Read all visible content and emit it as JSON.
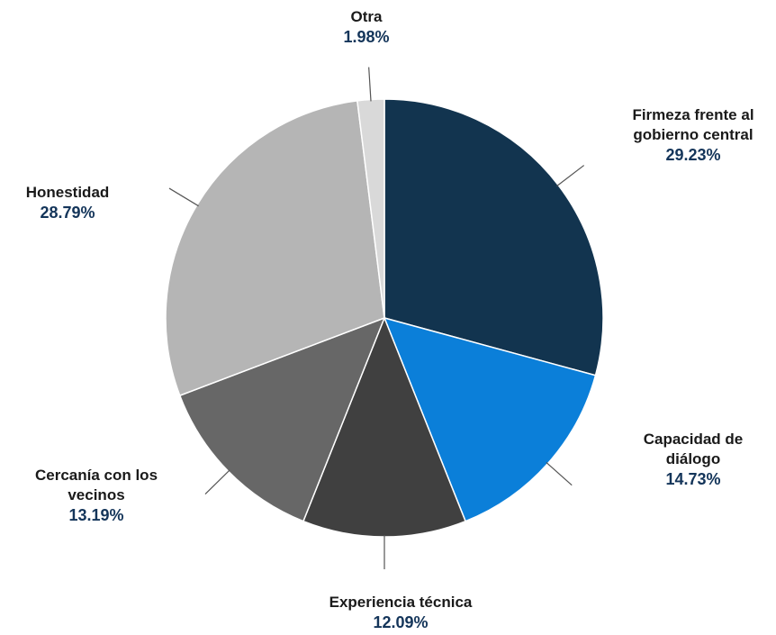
{
  "chart_data": {
    "type": "pie",
    "categories": [
      "Firmeza frente al gobierno central",
      "Capacidad de diálogo",
      "Experiencia técnica",
      "Cercanía con los vecinos",
      "Honestidad",
      "Otra"
    ],
    "values": [
      29.23,
      14.73,
      12.09,
      13.19,
      28.79,
      1.98
    ],
    "value_labels": [
      "29.23%",
      "14.73%",
      "12.09%",
      "13.19%",
      "28.79%",
      "1.98%"
    ],
    "colors": [
      "#12344f",
      "#0b7fd9",
      "#404040",
      "#676767",
      "#b5b5b5",
      "#d9d9d9"
    ]
  }
}
